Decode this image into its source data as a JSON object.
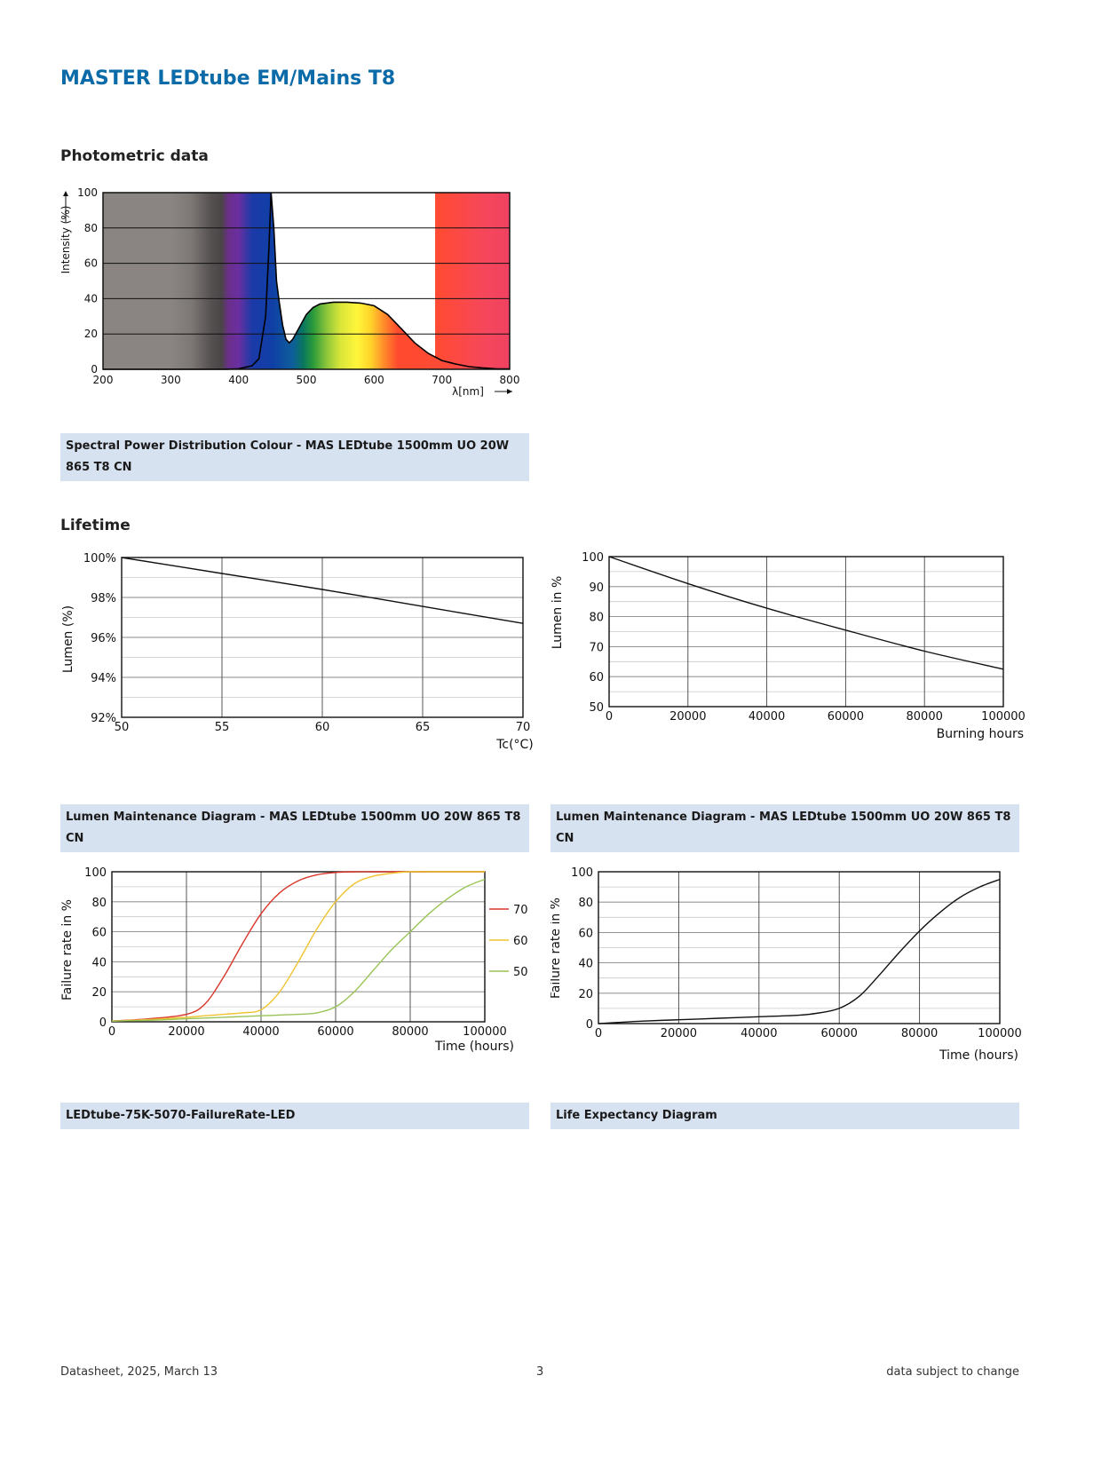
{
  "document": {
    "title": "MASTER LEDtube EM/Mains T8",
    "sections": {
      "photometric": "Photometric data",
      "lifetime": "Lifetime"
    },
    "captions": {
      "spd": "Spectral Power Distribution Colour - MAS LEDtube 1500mm UO 20W 865 T8 CN",
      "lumen_tc": "Lumen Maintenance Diagram - MAS LEDtube 1500mm UO 20W 865 T8 CN",
      "lumen_hours": "Lumen Maintenance Diagram - MAS LEDtube 1500mm UO 20W 865 T8 CN",
      "failure_rate": "LEDtube-75K-5070-FailureRate-LED",
      "life_expectancy": "Life Expectancy Diagram"
    },
    "footer": {
      "left": "Datasheet, 2025, March 13",
      "center": "3",
      "right": "data subject to change"
    }
  },
  "chart_data": [
    {
      "id": "spd",
      "type": "area",
      "xlabel": "λ[nm]",
      "ylabel": "Intensity (%)",
      "xlim": [
        200,
        800
      ],
      "ylim": [
        0,
        100
      ],
      "xticks": [
        "200",
        "300",
        "400",
        "500",
        "600",
        "700",
        "800"
      ],
      "yticks": [
        "0",
        "20",
        "40",
        "60",
        "80",
        "100"
      ],
      "x": [
        200,
        380,
        400,
        420,
        430,
        440,
        445,
        448,
        452,
        456,
        460,
        465,
        470,
        475,
        480,
        490,
        500,
        510,
        520,
        540,
        560,
        580,
        600,
        620,
        640,
        660,
        680,
        700,
        720,
        740,
        760,
        780,
        800
      ],
      "y": [
        0,
        0,
        0.3,
        2,
        6,
        30,
        70,
        100,
        80,
        50,
        38,
        25,
        17,
        15,
        17,
        24,
        31,
        35,
        37,
        38,
        38,
        37.5,
        36,
        31,
        23,
        15,
        9,
        5,
        3,
        1.5,
        0.8,
        0.3,
        0.2
      ]
    },
    {
      "id": "lumen_tc",
      "type": "line",
      "xlabel": "Tc(°C)",
      "ylabel": "Lumen (%)",
      "xlim": [
        50,
        70
      ],
      "ylim": [
        92,
        100
      ],
      "xticks": [
        "50",
        "55",
        "60",
        "65",
        "70"
      ],
      "yticks": [
        "92%",
        "94%",
        "96%",
        "98%",
        "100%"
      ],
      "x": [
        50,
        55,
        60,
        65,
        70
      ],
      "y": [
        100,
        99.2,
        98.4,
        97.55,
        96.7
      ]
    },
    {
      "id": "lumen_hours",
      "type": "line",
      "xlabel": "Burning hours",
      "ylabel": "Lumen in %",
      "xlim": [
        0,
        100000
      ],
      "ylim": [
        50,
        100
      ],
      "xticks": [
        "0",
        "20000",
        "40000",
        "60000",
        "80000",
        "100000"
      ],
      "yticks": [
        "50",
        "60",
        "70",
        "80",
        "90",
        "100"
      ],
      "x": [
        0,
        20000,
        40000,
        60000,
        80000,
        100000
      ],
      "y": [
        100,
        91,
        82.8,
        75.5,
        68.5,
        62.5
      ]
    },
    {
      "id": "failure_rate",
      "type": "line",
      "xlabel": "Time (hours)",
      "ylabel": "Failure rate in %",
      "xlim": [
        0,
        100000
      ],
      "ylim": [
        0,
        100
      ],
      "xticks": [
        "0",
        "20000",
        "40000",
        "60000",
        "80000",
        "100000"
      ],
      "yticks": [
        "0",
        "20",
        "40",
        "60",
        "80",
        "100"
      ],
      "legend_position": "right",
      "x": [
        0,
        10000,
        20000,
        25000,
        30000,
        35000,
        40000,
        45000,
        50000,
        55000,
        60000,
        65000,
        70000,
        75000,
        80000,
        85000,
        90000,
        95000,
        100000
      ],
      "series": [
        {
          "name": "70",
          "color": "#d9362b",
          "values": [
            0.5,
            2,
            5,
            12,
            30,
            52,
            72,
            86,
            94,
            98,
            99.5,
            100,
            100,
            100,
            100,
            100,
            100,
            100,
            100
          ]
        },
        {
          "name": "60",
          "color": "#f0c430",
          "values": [
            0.5,
            1.5,
            3,
            4,
            5,
            6,
            8,
            20,
            40,
            62,
            80,
            92,
            97,
            99,
            100,
            100,
            100,
            100,
            100
          ]
        },
        {
          "name": "50",
          "color": "#99c455",
          "values": [
            0.5,
            1,
            2,
            2.5,
            3,
            3.5,
            4,
            4.5,
            5,
            6,
            10,
            20,
            34,
            48,
            60,
            72,
            82,
            90,
            95
          ]
        }
      ]
    },
    {
      "id": "life_expectancy",
      "type": "line",
      "xlabel": "Time (hours)",
      "ylabel": "Failure rate in %",
      "xlim": [
        0,
        100000
      ],
      "ylim": [
        0,
        100
      ],
      "xticks": [
        "0",
        "20000",
        "40000",
        "60000",
        "80000",
        "100000"
      ],
      "yticks": [
        "0",
        "20",
        "40",
        "60",
        "80",
        "100"
      ],
      "x": [
        0,
        10000,
        20000,
        30000,
        40000,
        50000,
        55000,
        60000,
        65000,
        70000,
        75000,
        80000,
        85000,
        90000,
        95000,
        100000
      ],
      "y": [
        0,
        1.5,
        2.5,
        3.5,
        4.5,
        5.5,
        7,
        10,
        18,
        32,
        47,
        61,
        73,
        83,
        90,
        95
      ]
    }
  ]
}
